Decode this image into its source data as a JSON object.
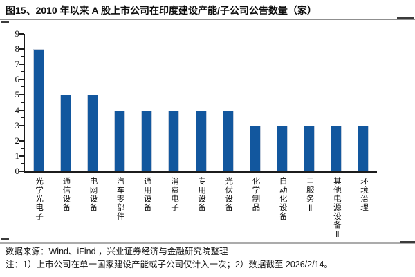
{
  "figure": {
    "title": "图15、2010 年以来 A 股上市公司在印度建设产能/子公司公告数量（家）"
  },
  "chart_data": {
    "type": "bar",
    "title": "2010 年以来 A 股上市公司在印度建设产能/子公司公告数量（家）",
    "categories": [
      "光学光电子",
      "通信设备",
      "电网设备",
      "汽车零部件",
      "通用设备",
      "消费电子",
      "专用设备",
      "光伏设备",
      "化学制品",
      "自动化设备",
      "IT服务Ⅱ",
      "其他电源设备Ⅱ",
      "环境治理"
    ],
    "values": [
      8,
      5,
      5,
      4,
      4,
      4,
      4,
      4,
      3,
      3,
      3,
      3,
      3
    ],
    "xlabel": "",
    "ylabel": "",
    "ylim": [
      0,
      9
    ],
    "ytick_step": 1,
    "yminor_step": 0.5,
    "bar_color": "#12579E",
    "axis_color": "#1c1c1c",
    "grid": false,
    "legend": false
  },
  "footer": {
    "source": "数据来源：Wind、iFind ，兴业证券经济与金融研究院整理",
    "note": "注：1）上市公司在单一国家建设产能或子公司仅计入一次；2）数据截至 2026/2/14。"
  }
}
